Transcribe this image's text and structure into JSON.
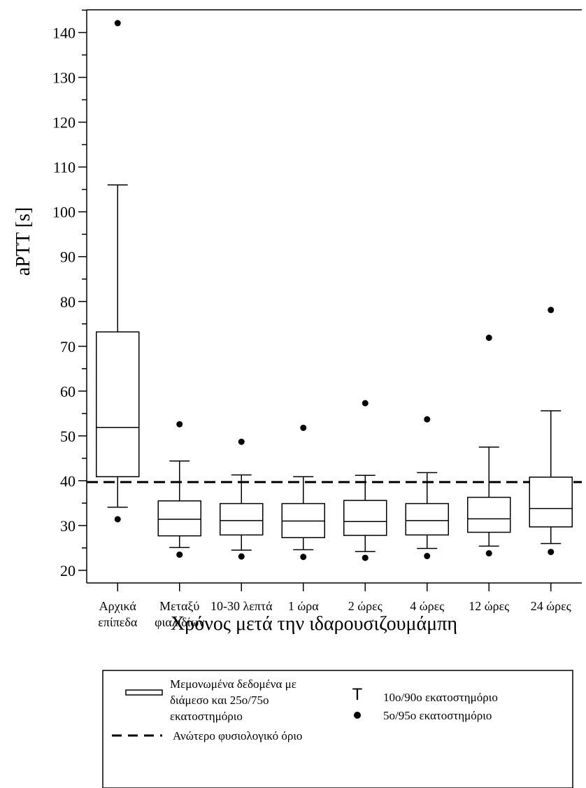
{
  "chart_data": {
    "type": "boxplot",
    "ylabel": "aPTT [s]",
    "xlabel": "Χρόνος μετά την ιδαρουσιζουμάμπη",
    "ylim": [
      16,
      150
    ],
    "y_ticks": [
      20,
      30,
      40,
      50,
      60,
      70,
      80,
      90,
      100,
      110,
      120,
      130,
      140
    ],
    "categories": [
      [
        "Αρχικά",
        "επίπεδα"
      ],
      [
        "Μεταξύ",
        "φιαλιδίων"
      ],
      [
        "10-30 λεπτά"
      ],
      [
        "1 ώρα"
      ],
      [
        "2 ώρες"
      ],
      [
        "4 ώρες"
      ],
      [
        "12 ώρες"
      ],
      [
        "24 ώρες"
      ]
    ],
    "boxes": [
      {
        "p5": 31.4,
        "p10": 34.1,
        "q1": 40.9,
        "median": 51.9,
        "q3": 73.2,
        "p90": 106.0,
        "p95": 142.1
      },
      {
        "p5": 23.5,
        "p10": 25.1,
        "q1": 27.7,
        "median": 31.4,
        "q3": 35.5,
        "p90": 44.4,
        "p95": 52.6
      },
      {
        "p5": 23.1,
        "p10": 24.5,
        "q1": 27.9,
        "median": 31.1,
        "q3": 34.9,
        "p90": 41.3,
        "p95": 48.7
      },
      {
        "p5": 23.0,
        "p10": 24.6,
        "q1": 27.3,
        "median": 31.0,
        "q3": 34.9,
        "p90": 40.9,
        "p95": 51.8
      },
      {
        "p5": 22.8,
        "p10": 24.2,
        "q1": 27.8,
        "median": 30.9,
        "q3": 35.6,
        "p90": 41.2,
        "p95": 57.3
      },
      {
        "p5": 23.2,
        "p10": 24.9,
        "q1": 27.9,
        "median": 31.1,
        "q3": 34.9,
        "p90": 41.8,
        "p95": 53.7
      },
      {
        "p5": 23.8,
        "p10": 25.4,
        "q1": 28.5,
        "median": 31.5,
        "q3": 36.3,
        "p90": 47.5,
        "p95": 71.9
      },
      {
        "p5": 24.1,
        "p10": 26.0,
        "q1": 29.7,
        "median": 33.8,
        "q3": 40.8,
        "p90": 55.6,
        "p95": 78.1
      }
    ],
    "reference_line": {
      "value": 39.7,
      "style": "dashed"
    }
  },
  "legend": {
    "box_label": [
      "Μεμονωμένα δεδομένα με",
      "διάμεσο και 25ο/75ο",
      "εκατοστημόριο"
    ],
    "dashed_label": "Ανώτερο φυσιολογικό όριο",
    "whisker_symbol": "T",
    "whisker_label": "10ο/90ο εκατοστημόριο",
    "dot_label": "5ο/95ο εκατοστημόριο"
  }
}
